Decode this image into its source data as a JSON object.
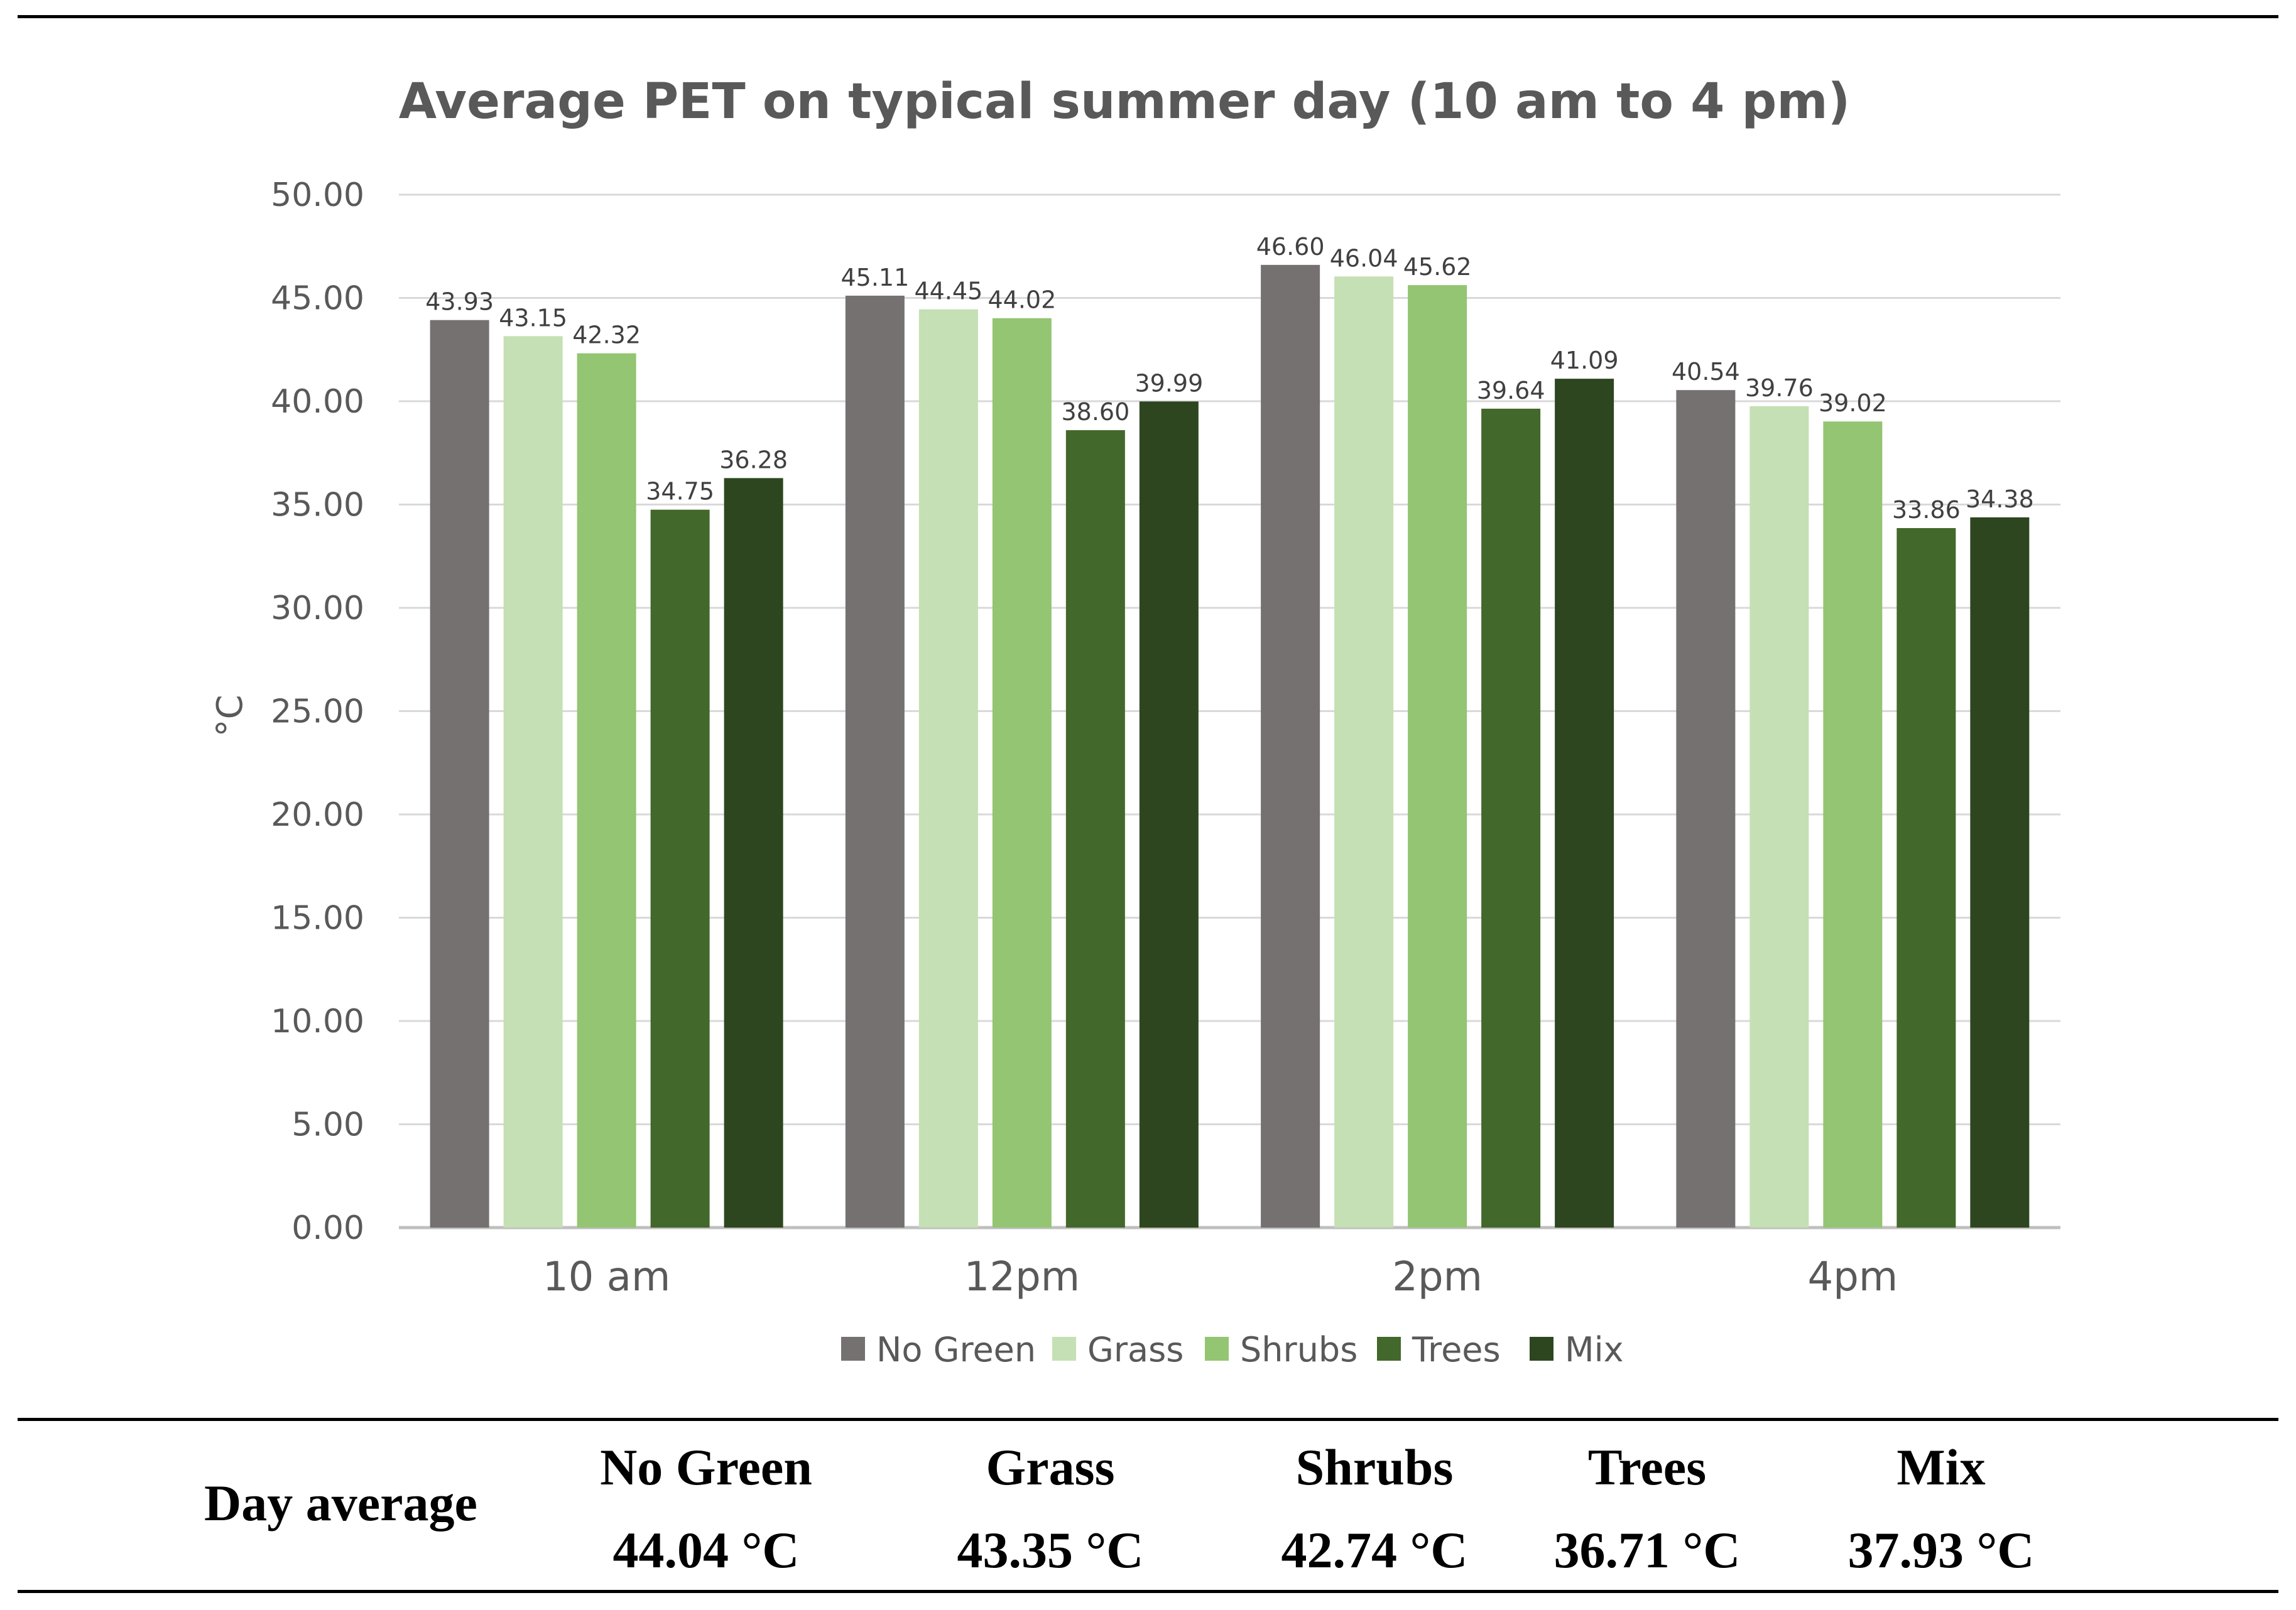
{
  "chart_data": {
    "type": "bar",
    "title": "Average  PET on typical summer day (10 am to 4 pm)",
    "xlabel": "",
    "ylabel": "°C",
    "ylim": [
      0,
      50
    ],
    "yticks": [
      "0.00",
      "5.00",
      "10.00",
      "15.00",
      "20.00",
      "25.00",
      "30.00",
      "35.00",
      "40.00",
      "45.00",
      "50.00"
    ],
    "grid": true,
    "legend_position": "bottom",
    "categories": [
      "10 am",
      "12pm",
      "2pm",
      "4pm"
    ],
    "series": [
      {
        "name": "No Green",
        "color": "#767171",
        "values": [
          43.93,
          45.11,
          46.6,
          40.54
        ],
        "labels": [
          "43.93",
          "45.11",
          "46.60",
          "40.54"
        ]
      },
      {
        "name": "Grass",
        "color": "#c5e0b4",
        "values": [
          43.15,
          44.45,
          46.04,
          39.76
        ],
        "labels": [
          "43.15",
          "44.45",
          "46.04",
          "39.76"
        ]
      },
      {
        "name": "Shrubs",
        "color": "#93c572",
        "values": [
          42.32,
          44.02,
          45.62,
          39.02
        ],
        "labels": [
          "42.32",
          "44.02",
          "45.62",
          "39.02"
        ]
      },
      {
        "name": "Trees",
        "color": "#43682b",
        "values": [
          34.75,
          38.6,
          39.64,
          33.86
        ],
        "labels": [
          "34.75",
          "38.60",
          "39.64",
          "33.86"
        ]
      },
      {
        "name": "Mix",
        "color": "#2d4620",
        "values": [
          36.28,
          39.99,
          41.09,
          34.38
        ],
        "labels": [
          "36.28",
          "39.99",
          "41.09",
          "34.38"
        ]
      }
    ]
  },
  "summary": {
    "label": "Day average",
    "items": [
      {
        "name": "No Green",
        "value": "44.04 °C"
      },
      {
        "name": "Grass",
        "value": "43.35 °C"
      },
      {
        "name": "Shrubs",
        "value": "42.74 °C"
      },
      {
        "name": "Trees",
        "value": "36.71 °C"
      },
      {
        "name": "Mix",
        "value": "37.93 °C"
      }
    ]
  }
}
